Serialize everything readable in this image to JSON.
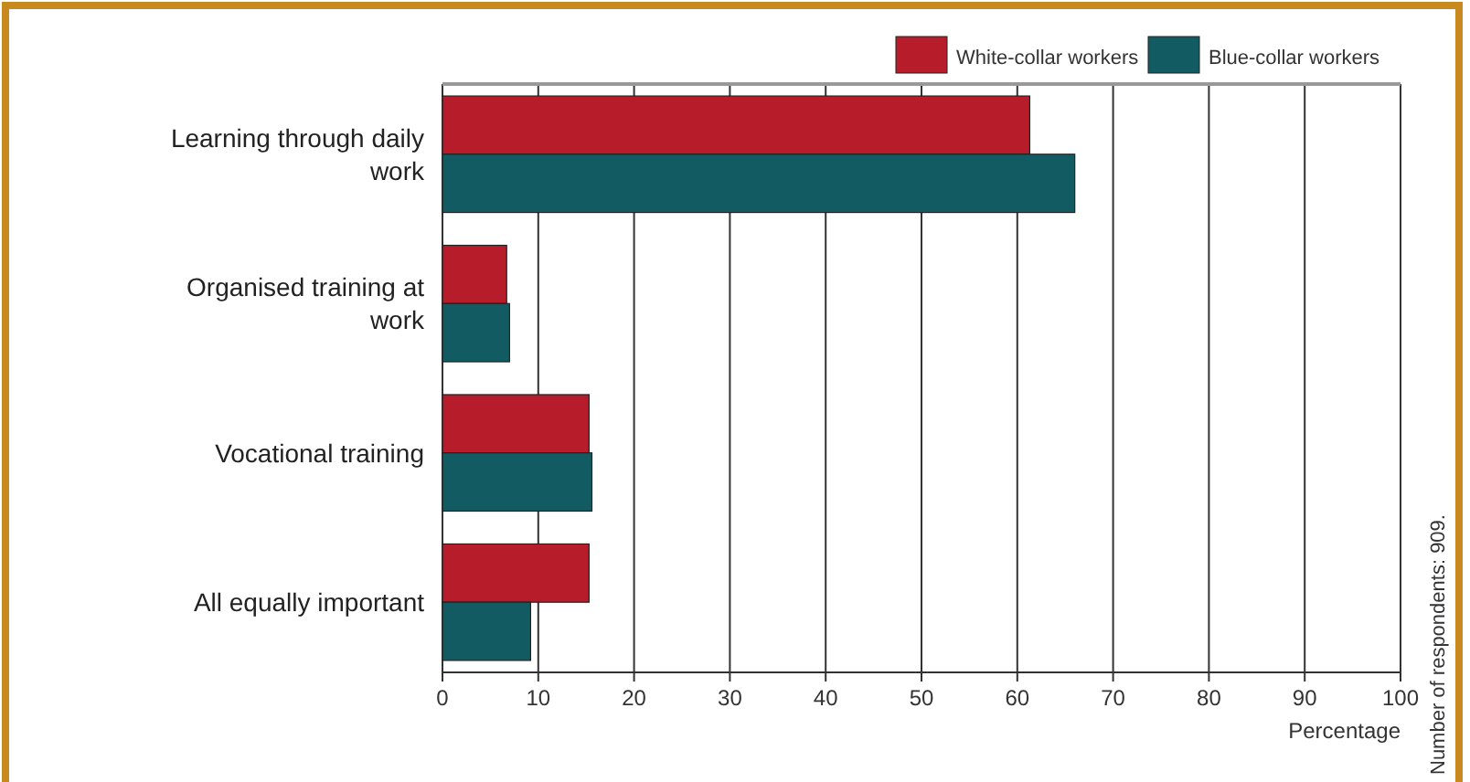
{
  "chart_data": {
    "type": "bar",
    "orientation": "horizontal",
    "xlabel": "Percentage",
    "categories": [
      "Learning through daily work",
      "Organised training at work",
      "Vocational training",
      "All equally important"
    ],
    "series": [
      {
        "name": "White-collar workers",
        "color": "#b71c2b",
        "values": [
          61.3,
          6.7,
          15.3,
          15.3
        ]
      },
      {
        "name": "Blue-collar workers",
        "color": "#135b63",
        "values": [
          66,
          7,
          15.6,
          9.2
        ]
      }
    ],
    "xlim": [
      0,
      100
    ],
    "xticks": [
      0,
      10,
      20,
      30,
      40,
      50,
      60,
      70,
      80,
      90,
      100
    ],
    "grid": "x",
    "legend": "top right",
    "annotations": [
      "Number of respondents: 909."
    ]
  }
}
